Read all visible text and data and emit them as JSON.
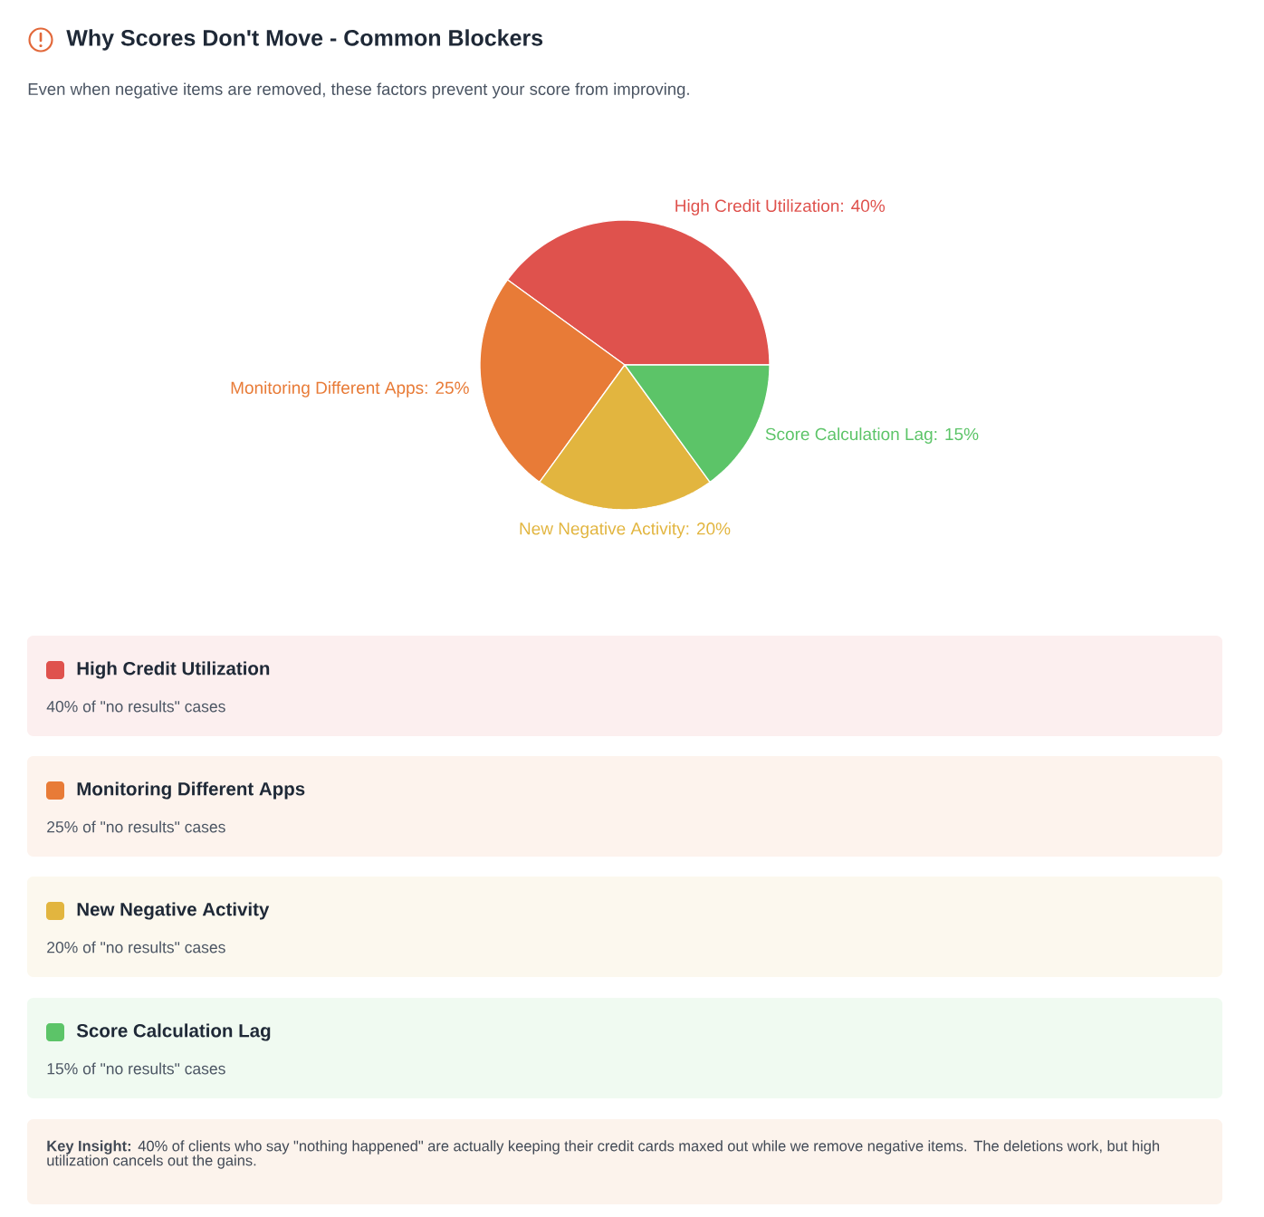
{
  "chart_data": {
    "type": "pie",
    "title": "Why Scores Don't Move - Common Blockers",
    "subtitle": "Even when negative items are removed, these factors prevent your score from improving.",
    "categories": [
      "High Credit Utilization",
      "Monitoring Different Apps",
      "New Negative Activity",
      "Score Calculation Lag"
    ],
    "values": [
      40,
      25,
      20,
      15
    ],
    "value_labels": [
      "High Credit Utilization: 40%",
      "Monitoring Different Apps: 25%",
      "New Negative Activity: 20%",
      "Score Calculation Lag: 15%"
    ],
    "legend": "bottom",
    "colors": [
      "#df524d",
      "#e87b37",
      "#e2b53f",
      "#5cc468"
    ],
    "annotations": [
      "40% of \"no results\" cases",
      "25% of \"no results\" cases",
      "20% of \"no results\" cases",
      "15% of \"no results\" cases",
      "**Key Insight:** 40% of clients who say \"nothing happened\" are actually keeping their credit cards maxed out while we remove negative items. The deletions work, but high utilization cancels out the gains."
    ]
  }
}
